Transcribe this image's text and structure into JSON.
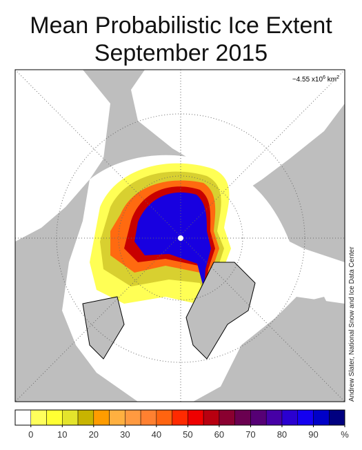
{
  "title": [
    "Mean Probabilistic Ice Extent",
    "September 2015"
  ],
  "annotation": {
    "text": "~4.55 x10",
    "exponent": "6",
    "unit": "km",
    "unit_exponent": "2"
  },
  "credit": "Andrew Slater, National Snow and Ice Data Center",
  "colorbar": {
    "bins": [
      -5,
      0,
      5,
      10,
      15,
      20,
      25,
      30,
      35,
      40,
      45,
      50,
      55,
      60,
      65,
      70,
      75,
      80,
      85,
      90,
      95,
      100
    ],
    "colors": [
      "#ffffff",
      "#ffff5c",
      "#ffff33",
      "#e4e42c",
      "#c8b400",
      "#ff9c00",
      "#ffb040",
      "#ff9a40",
      "#ff8030",
      "#ff6410",
      "#ff2a00",
      "#ee0000",
      "#b80010",
      "#8a0030",
      "#6a0050",
      "#560075",
      "#4600a6",
      "#2a00d0",
      "#1400f0",
      "#0000c8",
      "#000080"
    ],
    "ticks": [
      0,
      10,
      20,
      30,
      40,
      50,
      60,
      70,
      80,
      90,
      {
        "value": 100,
        "label": "%"
      }
    ]
  }
}
